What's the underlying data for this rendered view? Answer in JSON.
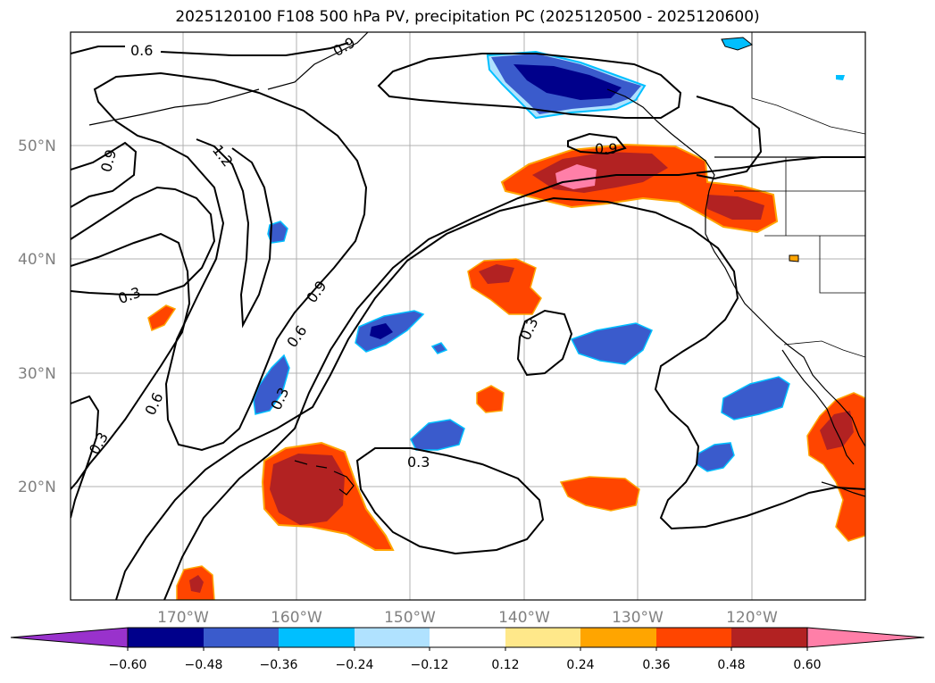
{
  "title": "2025120100 F108 500 hPa PV, precipitation PC (2025120500 - 2025120600)",
  "map": {
    "lon_range": [
      -180,
      -110
    ],
    "lat_range": [
      10,
      60
    ],
    "lat_ticks": [
      {
        "value": 20,
        "label": "20°N"
      },
      {
        "value": 30,
        "label": "30°N"
      },
      {
        "value": 40,
        "label": "40°N"
      },
      {
        "value": 50,
        "label": "50°N"
      }
    ],
    "lon_ticks": [
      {
        "value": -170,
        "label": "170°W"
      },
      {
        "value": -160,
        "label": "160°W"
      },
      {
        "value": -150,
        "label": "150°W"
      },
      {
        "value": -140,
        "label": "140°W"
      },
      {
        "value": -130,
        "label": "130°W"
      },
      {
        "value": -120,
        "label": "120°W"
      }
    ],
    "contour_labels": [
      "0.6",
      "0.9",
      "0.9",
      "1.2",
      "0.3",
      "0.9",
      "0.6",
      "0.3",
      "0.6",
      "0.3",
      "0.3",
      "0.3",
      "0.9"
    ]
  },
  "colorbar": {
    "colors": [
      "#9932cc",
      "#00008b",
      "#3a5bcc",
      "#00bfff",
      "#b0e2ff",
      "#ffffff",
      "#ffe88a",
      "#ffa500",
      "#ff4500",
      "#b22222",
      "#ff7fa8"
    ],
    "ticks": [
      "−0.60",
      "−0.48",
      "−0.36",
      "−0.24",
      "−0.12",
      "0.12",
      "0.24",
      "0.36",
      "0.48",
      "0.60"
    ]
  }
}
